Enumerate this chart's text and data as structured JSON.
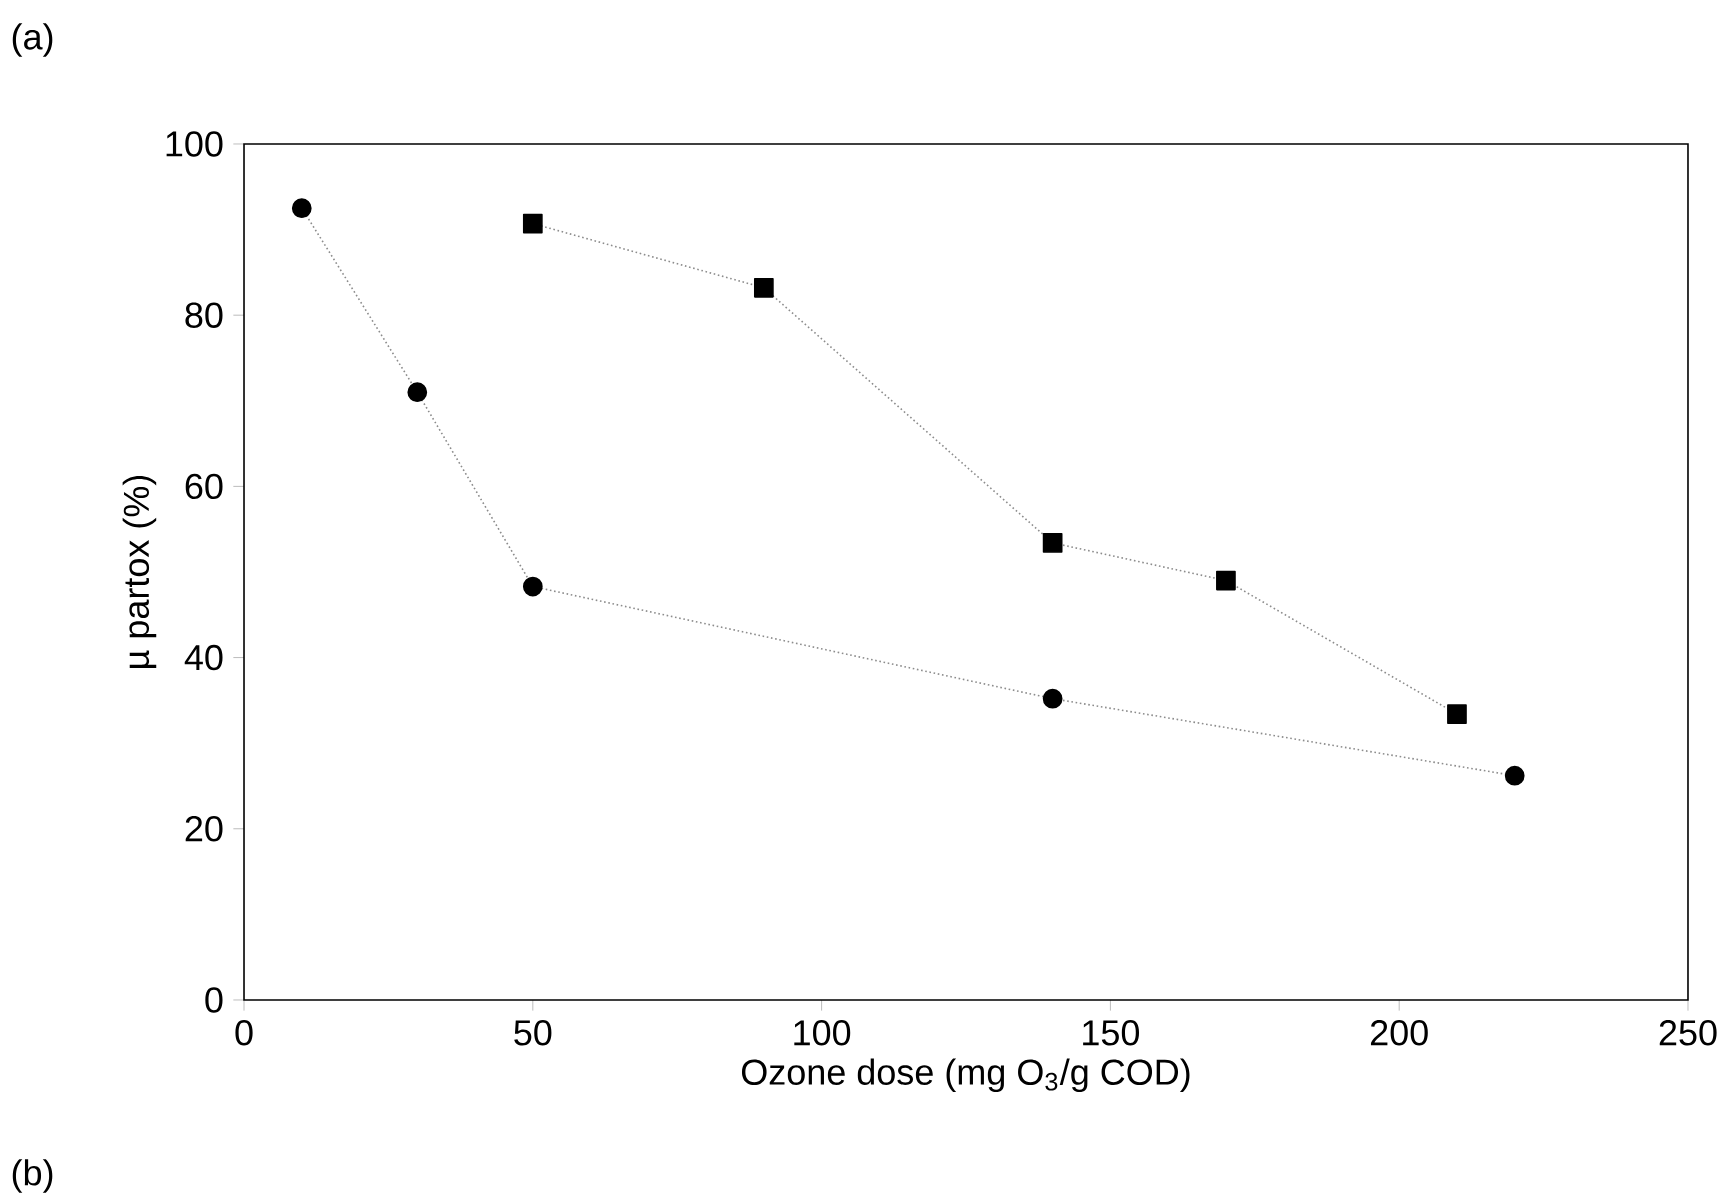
{
  "chart_data": {
    "type": "line",
    "xlabel": "Ozone dose (mg O$_{3}$/g COD)",
    "ylabel": "µ partox (%)",
    "annotations": [
      "(a)",
      "(b)"
    ],
    "series": [
      {
        "color": "#000000",
        "marker": "circle",
        "x": [
          10,
          30,
          50,
          140,
          220
        ],
        "values": [
          92.5,
          71,
          48.3,
          35.2,
          26.2
        ]
      },
      {
        "color": "#000000",
        "marker": "square",
        "x": [
          50,
          90,
          140,
          170,
          210
        ],
        "values": [
          90.7,
          83.2,
          53.4,
          49,
          33.4
        ]
      }
    ],
    "line_style": "dotted",
    "xlim": [
      0,
      250
    ],
    "xticks": [
      0,
      50,
      100,
      150,
      200,
      250
    ],
    "ylim": [
      0,
      100
    ],
    "yticks": [
      0,
      20,
      40,
      60,
      80,
      100
    ]
  }
}
